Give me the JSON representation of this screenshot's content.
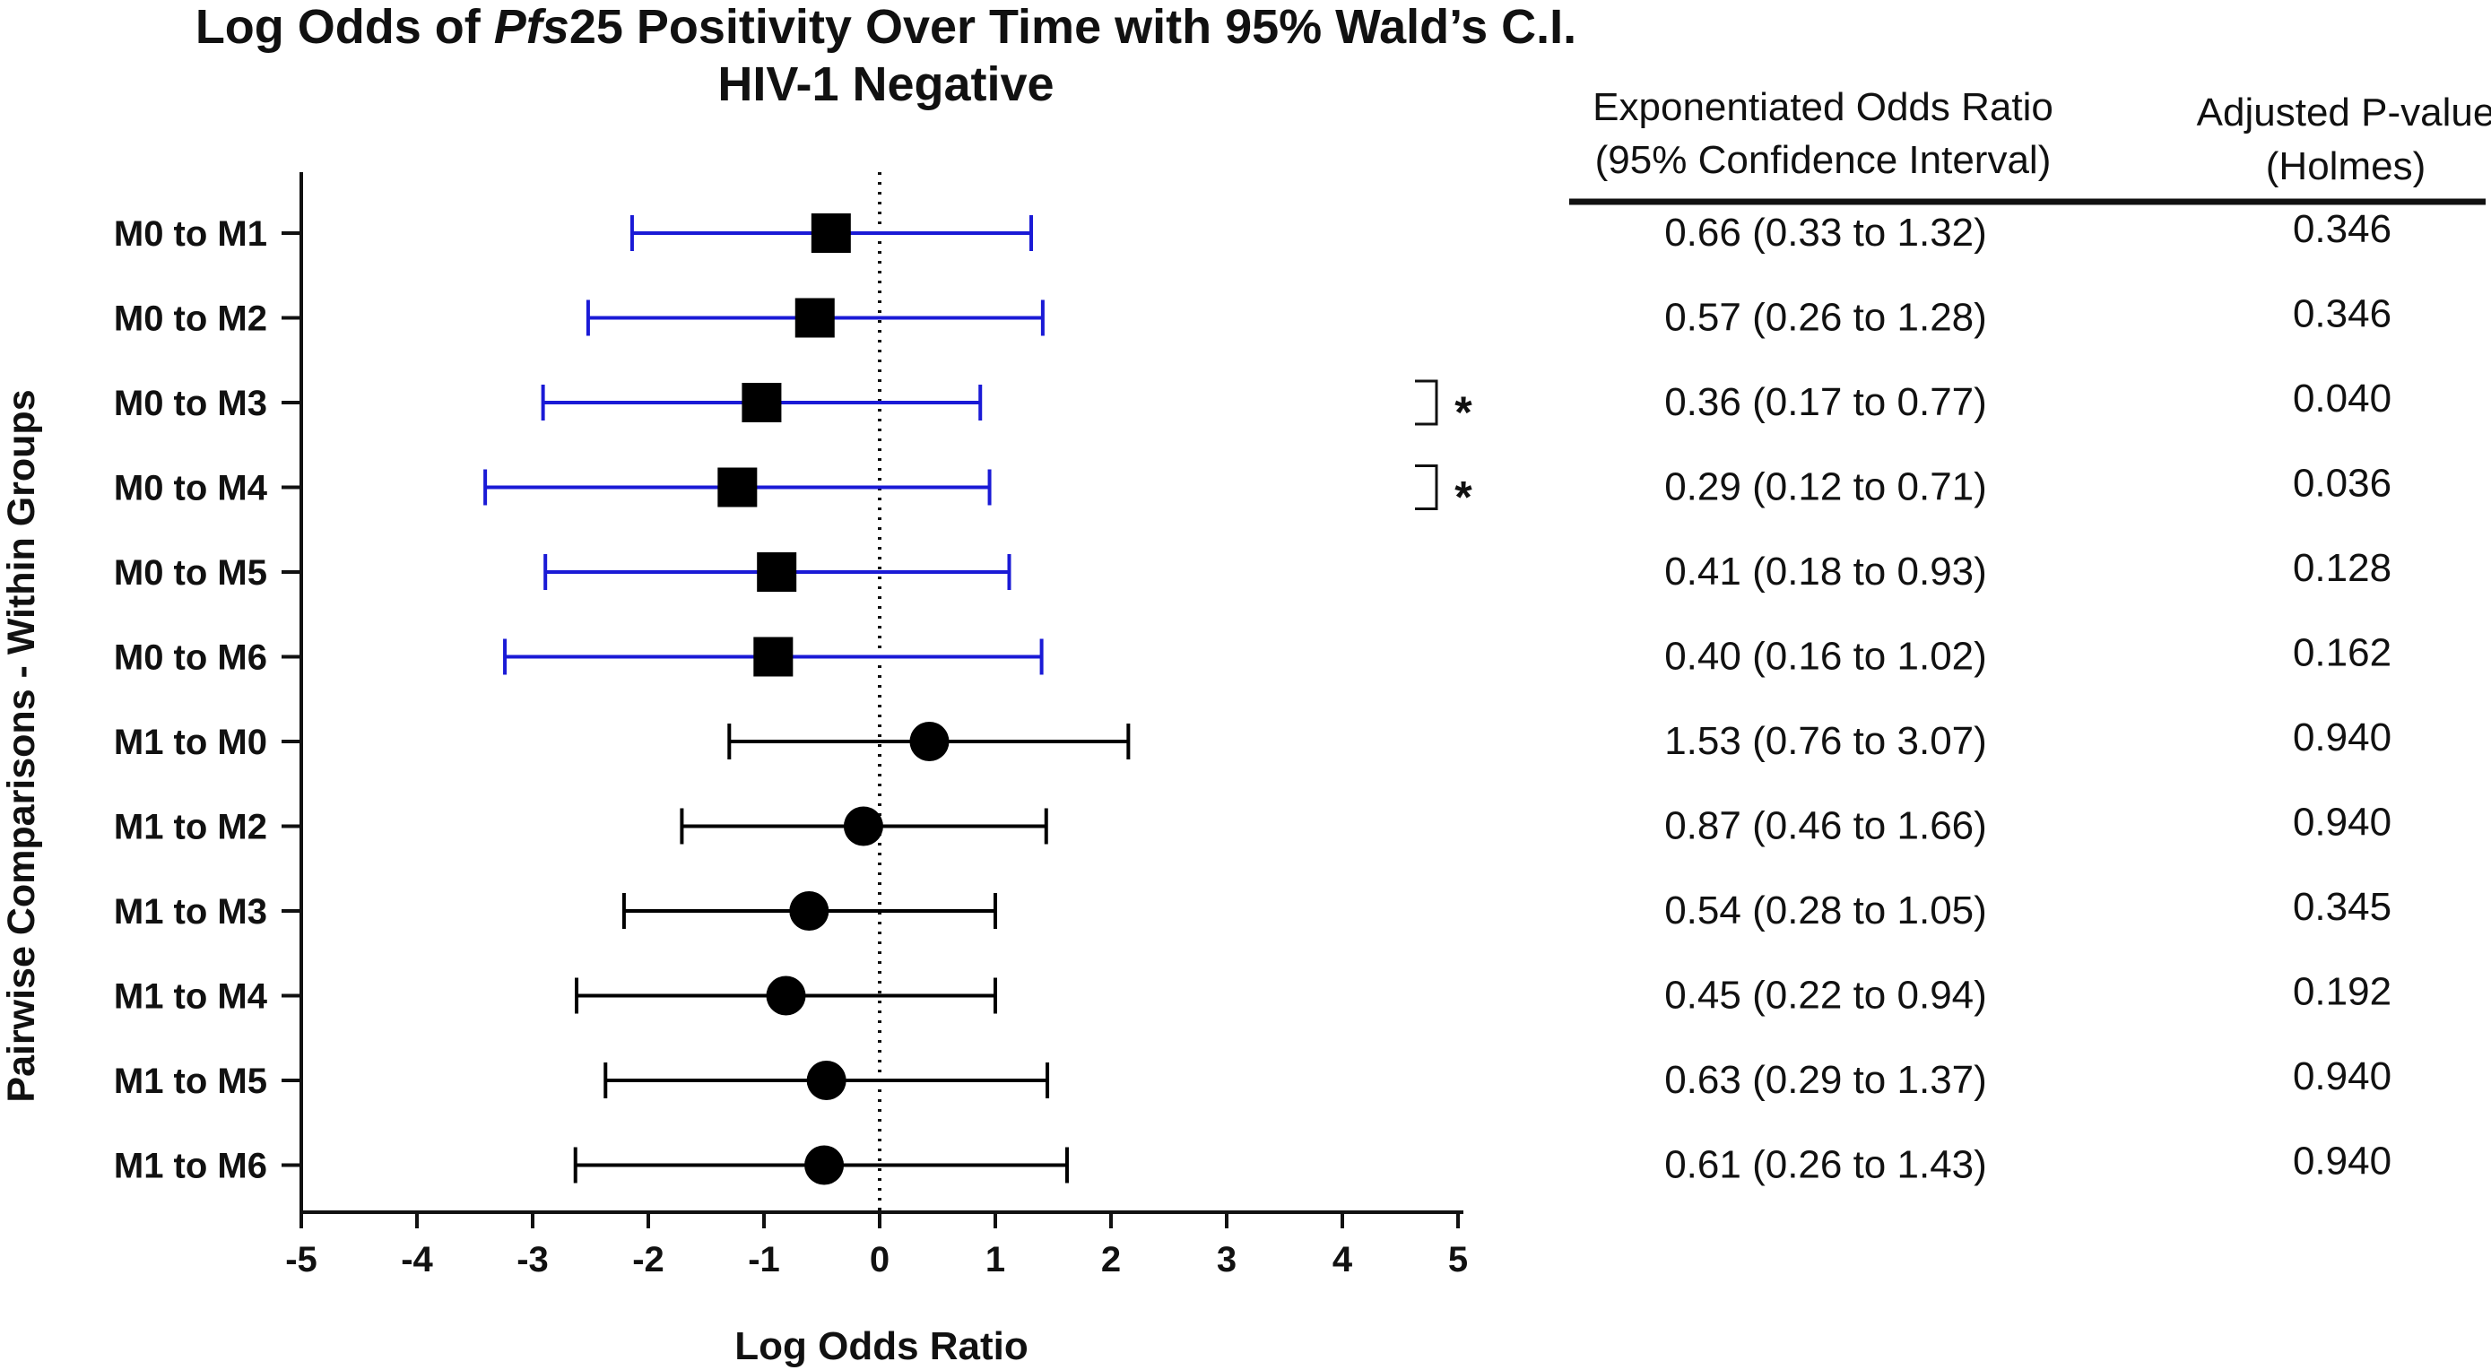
{
  "chart_data": {
    "type": "scatter",
    "subtype": "forest-plot",
    "title_parts": [
      "Log Odds of ",
      "Pfs",
      "25 Positivity Over Time with 95% Wald’s C.I."
    ],
    "subtitle": "HIV-1 Negative",
    "xlabel": "Log Odds Ratio",
    "ylabel": "Pairwise Comparisons - Within Groups",
    "xlim": [
      -5,
      5
    ],
    "xticks": [
      "-5",
      "-4",
      "-3",
      "-2",
      "-1",
      "0",
      "1",
      "2",
      "3",
      "4",
      "5"
    ],
    "reference_line": 0,
    "colors": {
      "group_m0": "#1a1ad6",
      "group_m1": "#000000",
      "marker": "#000000"
    },
    "rows": [
      {
        "label": "M0 to M1",
        "est": -0.42,
        "lo": -2.14,
        "hi": 1.31,
        "marker": "square",
        "group": "m0"
      },
      {
        "label": "M0 to M2",
        "est": -0.56,
        "lo": -2.52,
        "hi": 1.41,
        "marker": "square",
        "group": "m0"
      },
      {
        "label": "M0 to M3",
        "est": -1.02,
        "lo": -2.91,
        "hi": 0.87,
        "marker": "square",
        "group": "m0"
      },
      {
        "label": "M0 to M4",
        "est": -1.23,
        "lo": -3.41,
        "hi": 0.95,
        "marker": "square",
        "group": "m0"
      },
      {
        "label": "M0 to M5",
        "est": -0.89,
        "lo": -2.89,
        "hi": 1.12,
        "marker": "square",
        "group": "m0"
      },
      {
        "label": "M0 to M6",
        "est": -0.92,
        "lo": -3.24,
        "hi": 1.4,
        "marker": "square",
        "group": "m0"
      },
      {
        "label": "M1 to M0",
        "est": 0.43,
        "lo": -1.3,
        "hi": 2.15,
        "marker": "circle",
        "group": "m1"
      },
      {
        "label": "M1 to M2",
        "est": -0.14,
        "lo": -1.71,
        "hi": 1.44,
        "marker": "circle",
        "group": "m1"
      },
      {
        "label": "M1 to M3",
        "est": -0.61,
        "lo": -2.21,
        "hi": 1.0,
        "marker": "circle",
        "group": "m1"
      },
      {
        "label": "M1 to M4",
        "est": -0.81,
        "lo": -2.62,
        "hi": 1.0,
        "marker": "circle",
        "group": "m1"
      },
      {
        "label": "M1 to M5",
        "est": -0.46,
        "lo": -2.37,
        "hi": 1.45,
        "marker": "circle",
        "group": "m1"
      },
      {
        "label": "M1 to M6",
        "est": -0.48,
        "lo": -2.63,
        "hi": 1.62,
        "marker": "circle",
        "group": "m1"
      }
    ],
    "significance_marker": "*",
    "significant_rows": [
      2,
      3
    ],
    "table": {
      "headers": [
        [
          "Exponentiated Odds Ratio",
          "(95% Confidence Interval)"
        ],
        [
          "Adjusted P-value",
          "(Holmes)"
        ]
      ],
      "rows": [
        [
          "0.66 (0.33 to 1.32)",
          "0.346"
        ],
        [
          "0.57 (0.26 to 1.28)",
          "0.346"
        ],
        [
          "0.36 (0.17 to 0.77)",
          "0.040"
        ],
        [
          "0.29 (0.12 to 0.71)",
          "0.036"
        ],
        [
          "0.41 (0.18 to 0.93)",
          "0.128"
        ],
        [
          "0.40 (0.16 to 1.02)",
          "0.162"
        ],
        [
          "1.53 (0.76 to 3.07)",
          "0.940"
        ],
        [
          "0.87 (0.46 to 1.66)",
          "0.940"
        ],
        [
          "0.54 (0.28 to 1.05)",
          "0.345"
        ],
        [
          "0.45 (0.22 to 0.94)",
          "0.192"
        ],
        [
          "0.63 (0.29 to 1.37)",
          "0.940"
        ],
        [
          "0.61 (0.26 to 1.43)",
          "0.940"
        ]
      ]
    }
  }
}
